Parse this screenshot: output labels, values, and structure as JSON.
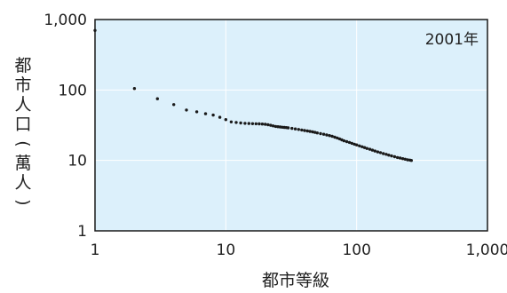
{
  "chart_data": {
    "type": "scatter",
    "scale": {
      "x": "log",
      "y": "log"
    },
    "xlim": [
      1,
      1000
    ],
    "ylim": [
      1,
      1000
    ],
    "x_ticks": [
      "1",
      "10",
      "100",
      "1,000"
    ],
    "y_ticks": [
      "1",
      "10",
      "100",
      "1,000"
    ],
    "xlabel": "都市等級",
    "ylabel": "都市人口(萬人)",
    "annotation": "2001年",
    "grid": true,
    "colors": {
      "plot_bg": "#dcf0fb",
      "frame": "#1a1a1a",
      "grid": "#ffffff",
      "points": "#1a1a1a"
    },
    "points": [
      [
        1,
        700
      ],
      [
        2,
        105
      ],
      [
        3,
        75
      ],
      [
        4,
        62
      ],
      [
        5,
        52
      ],
      [
        6,
        49
      ],
      [
        7,
        46
      ],
      [
        8,
        44
      ],
      [
        9,
        41
      ],
      [
        10,
        38
      ],
      [
        11,
        35.2
      ],
      [
        12,
        34.6
      ],
      [
        13,
        34.0
      ],
      [
        14,
        33.6
      ],
      [
        15,
        33.4
      ],
      [
        16,
        33.2
      ],
      [
        17,
        33.1
      ],
      [
        18,
        33.0
      ],
      [
        19,
        32.8
      ],
      [
        20,
        32.6
      ],
      [
        21,
        32.1
      ],
      [
        22,
        31.5
      ],
      [
        23,
        30.9
      ],
      [
        24,
        30.4
      ],
      [
        25,
        30.1
      ],
      [
        26,
        29.8
      ],
      [
        27,
        29.6
      ],
      [
        28,
        29.4
      ],
      [
        29,
        29.2
      ],
      [
        30,
        29.0
      ],
      [
        32,
        28.5
      ],
      [
        34,
        28.0
      ],
      [
        36,
        27.5
      ],
      [
        38,
        27.0
      ],
      [
        40,
        26.6
      ],
      [
        42,
        26.2
      ],
      [
        44,
        25.8
      ],
      [
        46,
        25.4
      ],
      [
        48,
        25.0
      ],
      [
        50,
        24.6
      ],
      [
        53,
        24.0
      ],
      [
        56,
        23.5
      ],
      [
        59,
        23.0
      ],
      [
        62,
        22.5
      ],
      [
        65,
        22.0
      ],
      [
        68,
        21.4
      ],
      [
        71,
        20.8
      ],
      [
        74,
        20.2
      ],
      [
        77,
        19.6
      ],
      [
        80,
        19.0
      ],
      [
        84,
        18.5
      ],
      [
        88,
        18.0
      ],
      [
        92,
        17.5
      ],
      [
        96,
        17.0
      ],
      [
        100,
        16.6
      ],
      [
        105,
        16.1
      ],
      [
        110,
        15.6
      ],
      [
        115,
        15.2
      ],
      [
        120,
        14.8
      ],
      [
        126,
        14.4
      ],
      [
        132,
        14.0
      ],
      [
        138,
        13.6
      ],
      [
        145,
        13.2
      ],
      [
        152,
        12.9
      ],
      [
        160,
        12.5
      ],
      [
        168,
        12.2
      ],
      [
        176,
        11.9
      ],
      [
        185,
        11.6
      ],
      [
        195,
        11.3
      ],
      [
        205,
        11.0
      ],
      [
        215,
        10.8
      ],
      [
        225,
        10.6
      ],
      [
        235,
        10.4
      ],
      [
        245,
        10.2
      ],
      [
        255,
        10.1
      ],
      [
        262,
        10.0
      ]
    ]
  }
}
